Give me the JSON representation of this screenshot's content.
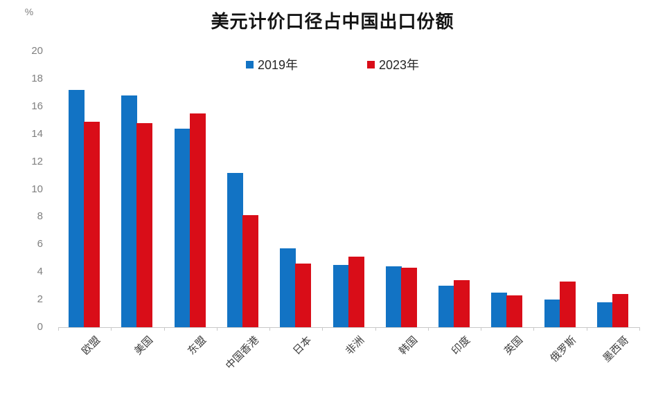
{
  "chart_data": {
    "type": "bar",
    "title": "美元计价口径占中国出口份额",
    "ylabel": "%",
    "xlabel": "",
    "categories": [
      "欧盟",
      "美国",
      "东盟",
      "中国香港",
      "日本",
      "非洲",
      "韩国",
      "印度",
      "英国",
      "俄罗斯",
      "墨西哥"
    ],
    "series": [
      {
        "name": "2019年",
        "color": "#1273C4",
        "values": [
          17.2,
          16.8,
          14.4,
          11.2,
          5.7,
          4.5,
          4.4,
          3.0,
          2.5,
          2.0,
          1.8
        ]
      },
      {
        "name": "2023年",
        "color": "#D90D18",
        "values": [
          14.9,
          14.8,
          15.5,
          8.1,
          4.6,
          5.1,
          4.3,
          3.4,
          2.3,
          3.3,
          2.4
        ]
      }
    ],
    "ylim": [
      0,
      20
    ],
    "yticks": [
      0,
      2,
      4,
      6,
      8,
      10,
      12,
      14,
      16,
      18,
      20
    ],
    "grid": false,
    "legend_position": "top-center",
    "axis_color": "#C8C8C8",
    "tick_label_color": "#7F7F7F",
    "category_label_color": "#3F3F3F",
    "category_label_rotation_deg": -45
  }
}
